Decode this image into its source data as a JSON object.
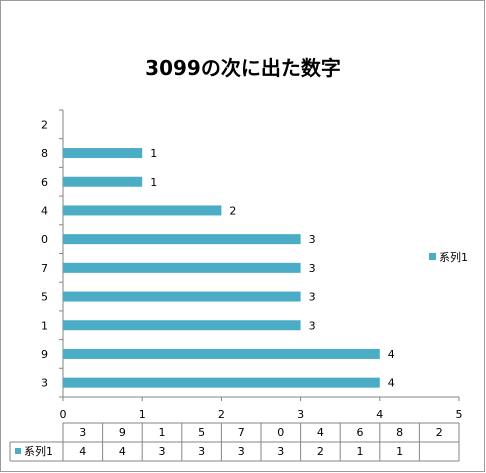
{
  "chart_data": {
    "type": "bar",
    "orientation": "horizontal",
    "title": "3099の次に出た数字",
    "categories": [
      "3",
      "9",
      "1",
      "5",
      "7",
      "0",
      "4",
      "6",
      "8",
      "2"
    ],
    "series": [
      {
        "name": "系列1",
        "values": [
          4,
          4,
          3,
          3,
          3,
          3,
          2,
          1,
          1,
          null
        ]
      }
    ],
    "xlim": [
      0,
      5
    ],
    "x_ticks": [
      "0",
      "1",
      "2",
      "3",
      "4",
      "5"
    ],
    "grid": false,
    "legend_placement": "right",
    "data_table": true,
    "colors": {
      "bar": "#4BACC6",
      "axis": "#868686",
      "frame": "#9c9c9c"
    }
  }
}
